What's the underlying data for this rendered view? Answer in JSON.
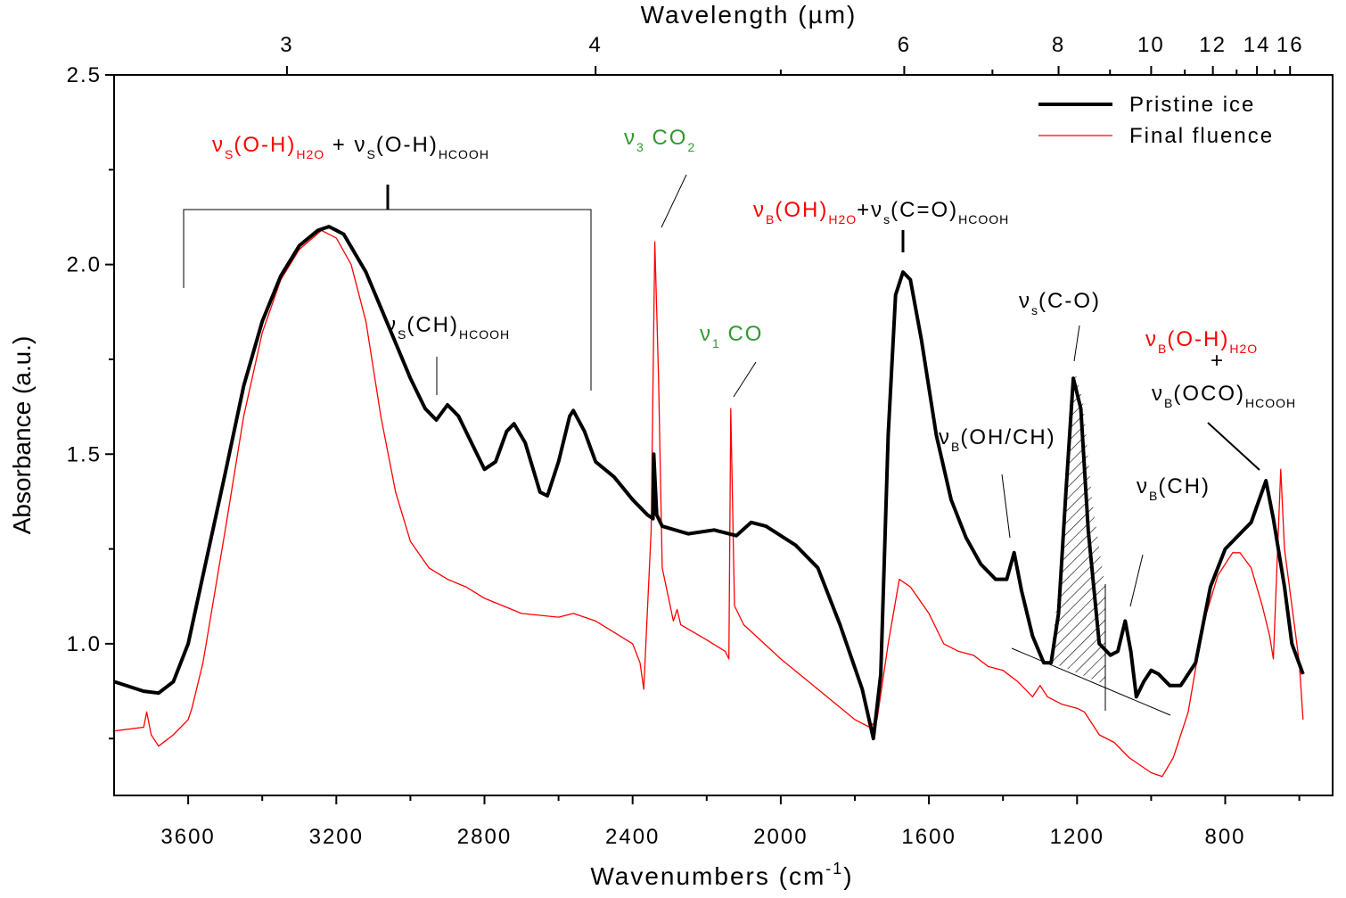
{
  "chart_data": {
    "type": "line",
    "xlabel": [
      "Wavenumbers (cm",
      "-1",
      ")"
    ],
    "x2label": "Wavelength (µm)",
    "ylabel": "Absorbance (a.u.)",
    "xlim": [
      3800,
      510
    ],
    "ylim": [
      0.6,
      2.5
    ],
    "xticks": [
      3600,
      3200,
      2800,
      2400,
      2000,
      1600,
      1200,
      800
    ],
    "xminorticks": [
      3400,
      3000,
      2600,
      2200,
      1800,
      1400,
      1000,
      600
    ],
    "yticks": [
      {
        "value": 1,
        "label": "1.0"
      },
      1.5,
      {
        "value": 2,
        "label": "2.0"
      },
      2.5
    ],
    "yminorticks": [
      0.75,
      1.25,
      1.75,
      2.25
    ],
    "x2ticks": [
      3,
      4,
      6,
      8,
      10,
      12,
      14,
      16
    ],
    "x2minorticks": [
      5,
      7,
      9,
      11,
      13,
      15
    ],
    "legend": "upper right",
    "series": [
      {
        "name": "Pristine ice",
        "color": "#000000",
        "width": 4,
        "x": [
          3800,
          3720,
          3680,
          3640,
          3600,
          3560,
          3500,
          3450,
          3400,
          3350,
          3300,
          3250,
          3220,
          3180,
          3120,
          3060,
          3000,
          2960,
          2930,
          2900,
          2870,
          2830,
          2800,
          2770,
          2740,
          2720,
          2690,
          2650,
          2630,
          2600,
          2570,
          2560,
          2530,
          2500,
          2450,
          2400,
          2360,
          2345,
          2343,
          2335,
          2320,
          2250,
          2180,
          2120,
          2080,
          2040,
          1960,
          1900,
          1840,
          1780,
          1750,
          1730,
          1710,
          1690,
          1670,
          1650,
          1620,
          1580,
          1540,
          1500,
          1460,
          1420,
          1390,
          1370,
          1350,
          1320,
          1290,
          1270,
          1250,
          1230,
          1210,
          1190,
          1170,
          1140,
          1110,
          1090,
          1070,
          1055,
          1040,
          1020,
          1000,
          980,
          950,
          920,
          880,
          840,
          800,
          760,
          730,
          690,
          670,
          640,
          620,
          590
        ],
        "values": [
          0.9,
          0.875,
          0.87,
          0.9,
          1.0,
          1.18,
          1.45,
          1.68,
          1.85,
          1.97,
          2.05,
          2.09,
          2.1,
          2.08,
          1.98,
          1.84,
          1.7,
          1.62,
          1.59,
          1.63,
          1.6,
          1.52,
          1.46,
          1.48,
          1.56,
          1.58,
          1.53,
          1.4,
          1.39,
          1.48,
          1.6,
          1.615,
          1.56,
          1.48,
          1.44,
          1.38,
          1.34,
          1.33,
          1.5,
          1.34,
          1.31,
          1.29,
          1.3,
          1.285,
          1.32,
          1.31,
          1.26,
          1.2,
          1.05,
          0.88,
          0.75,
          0.92,
          1.55,
          1.92,
          1.98,
          1.96,
          1.8,
          1.55,
          1.38,
          1.28,
          1.21,
          1.17,
          1.17,
          1.24,
          1.14,
          1.02,
          0.95,
          0.95,
          1.08,
          1.4,
          1.7,
          1.62,
          1.3,
          1.0,
          0.97,
          0.98,
          1.06,
          0.98,
          0.86,
          0.9,
          0.93,
          0.92,
          0.89,
          0.89,
          0.95,
          1.15,
          1.25,
          1.29,
          1.32,
          1.43,
          1.33,
          1.15,
          1.0,
          0.92
        ]
      },
      {
        "name": "Final fluence",
        "color": "#ff0000",
        "width": 1.3,
        "x": [
          3800,
          3720,
          3712,
          3700,
          3680,
          3640,
          3600,
          3590,
          3560,
          3500,
          3450,
          3400,
          3350,
          3300,
          3240,
          3200,
          3160,
          3120,
          3080,
          3040,
          3000,
          2950,
          2900,
          2850,
          2800,
          2700,
          2600,
          2560,
          2500,
          2450,
          2400,
          2380,
          2370,
          2350,
          2340,
          2330,
          2320,
          2290,
          2280,
          2270,
          2200,
          2150,
          2140,
          2135,
          2125,
          2100,
          2000,
          1900,
          1800,
          1760,
          1740,
          1710,
          1680,
          1650,
          1600,
          1560,
          1520,
          1480,
          1440,
          1400,
          1360,
          1320,
          1300,
          1280,
          1240,
          1200,
          1180,
          1140,
          1100,
          1060,
          1000,
          970,
          940,
          900,
          860,
          820,
          780,
          760,
          730,
          700,
          680,
          670,
          650,
          640,
          600,
          590
        ],
        "values": [
          0.77,
          0.78,
          0.82,
          0.76,
          0.73,
          0.76,
          0.8,
          0.83,
          0.95,
          1.3,
          1.6,
          1.82,
          1.96,
          2.04,
          2.09,
          2.07,
          2.0,
          1.85,
          1.6,
          1.4,
          1.27,
          1.2,
          1.17,
          1.15,
          1.12,
          1.08,
          1.07,
          1.08,
          1.06,
          1.03,
          1.0,
          0.95,
          0.88,
          1.3,
          2.06,
          1.7,
          1.2,
          1.06,
          1.09,
          1.05,
          1.01,
          0.98,
          0.96,
          1.62,
          1.1,
          1.05,
          0.96,
          0.88,
          0.8,
          0.78,
          0.8,
          1.0,
          1.17,
          1.15,
          1.08,
          1.0,
          0.98,
          0.97,
          0.94,
          0.93,
          0.9,
          0.86,
          0.89,
          0.86,
          0.84,
          0.83,
          0.82,
          0.76,
          0.74,
          0.7,
          0.66,
          0.65,
          0.7,
          0.82,
          1.05,
          1.18,
          1.24,
          1.24,
          1.2,
          1.1,
          1.02,
          0.96,
          1.46,
          1.25,
          0.95,
          0.8
        ]
      }
    ],
    "annotations": [
      {
        "parts": [
          {
            "text": "ν",
            "color": "#ff0000"
          },
          {
            "text": "S",
            "color": "#ff0000",
            "sub": true
          },
          {
            "text": "(O-H)",
            "color": "#ff0000"
          },
          {
            "text": "H2O",
            "color": "#ff0000",
            "sub": true
          },
          {
            "text": " +  ",
            "color": "#000000"
          },
          {
            "text": "ν",
            "color": "#000000"
          },
          {
            "text": "S",
            "color": "#000000",
            "sub": true
          },
          {
            "text": "(O-H)",
            "color": "#000000"
          },
          {
            "text": "HCOOH",
            "color": "#000000",
            "sub": true
          }
        ]
      },
      {
        "parts": [
          {
            "text": "ν",
            "color": "#2e9a2e"
          },
          {
            "text": "3",
            "color": "#2e9a2e",
            "sub": true
          },
          {
            "text": " CO",
            "color": "#2e9a2e"
          },
          {
            "text": "2",
            "color": "#2e9a2e",
            "sub": true
          }
        ]
      },
      {
        "parts": [
          {
            "text": "ν",
            "color": "#ff0000"
          },
          {
            "text": "B",
            "color": "#ff0000",
            "sub": true
          },
          {
            "text": "(OH)",
            "color": "#ff0000"
          },
          {
            "text": "H2O",
            "color": "#ff0000",
            "sub": true
          },
          {
            "text": "+",
            "color": "#000000"
          },
          {
            "text": "ν",
            "color": "#000000"
          },
          {
            "text": "s",
            "color": "#000000",
            "sub": true
          },
          {
            "text": "(C=O)",
            "color": "#000000"
          },
          {
            "text": "HCOOH",
            "color": "#000000",
            "sub": true
          }
        ]
      },
      {
        "parts": [
          {
            "text": "ν",
            "color": "#000000"
          },
          {
            "text": "S",
            "color": "#000000",
            "sub": true
          },
          {
            "text": "(CH)",
            "color": "#000000"
          },
          {
            "text": "HCOOH",
            "color": "#000000",
            "sub": true
          }
        ]
      },
      {
        "parts": [
          {
            "text": "ν",
            "color": "#2e9a2e"
          },
          {
            "text": "1",
            "color": "#2e9a2e",
            "sub": true
          },
          {
            "text": " CO",
            "color": "#2e9a2e"
          }
        ]
      },
      {
        "parts": [
          {
            "text": "ν",
            "color": "#000000"
          },
          {
            "text": "B",
            "color": "#000000",
            "sub": true
          },
          {
            "text": "(OH/CH)",
            "color": "#000000"
          }
        ]
      },
      {
        "parts": [
          {
            "text": "ν",
            "color": "#000000"
          },
          {
            "text": "s",
            "color": "#000000",
            "sub": true
          },
          {
            "text": "(C-O)",
            "color": "#000000"
          }
        ]
      },
      {
        "parts": [
          {
            "text": "ν",
            "color": "#ff0000"
          },
          {
            "text": "B",
            "color": "#ff0000",
            "sub": true
          },
          {
            "text": "(O-H)",
            "color": "#ff0000"
          },
          {
            "text": "H2O",
            "color": "#ff0000",
            "sub": true
          }
        ]
      },
      {
        "parts": [
          {
            "text": "+",
            "color": "#000000"
          }
        ]
      },
      {
        "parts": [
          {
            "text": "ν",
            "color": "#000000"
          },
          {
            "text": "B",
            "color": "#000000",
            "sub": true
          },
          {
            "text": "(OCO)",
            "color": "#000000"
          },
          {
            "text": "HCOOH",
            "color": "#000000",
            "sub": true
          }
        ]
      },
      {
        "parts": [
          {
            "text": "ν",
            "color": "#000000"
          },
          {
            "text": "B",
            "color": "#000000",
            "sub": true
          },
          {
            "text": "(CH)",
            "color": "#000000"
          }
        ]
      }
    ]
  }
}
